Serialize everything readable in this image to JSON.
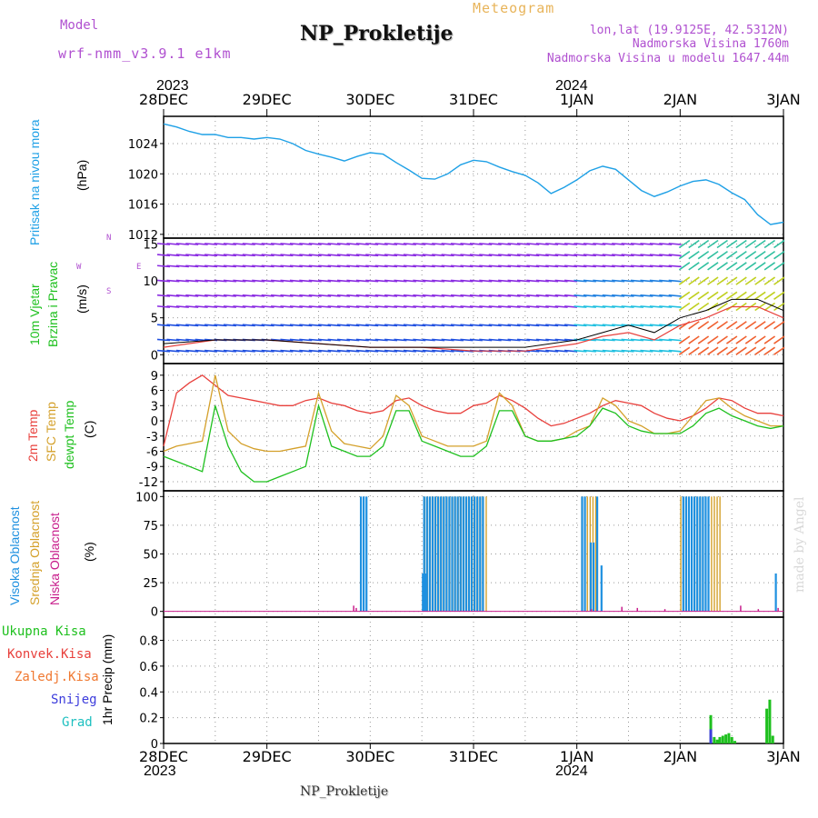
{
  "header": {
    "model_label": "Model",
    "model_value": "wrf-nmm_v3.9.1 e1km",
    "title": "NP_Prokletije",
    "subtitle": "Meteogram",
    "lonlat": "lon,lat (19.9125E, 42.5312N)",
    "elevation": "Nadmorska Visina 1760m",
    "model_elevation": "Nadmorska Visina u modelu 1647.44m"
  },
  "time_axis": {
    "labels": [
      "28DEC",
      "29DEC",
      "30DEC",
      "31DEC",
      "1JAN",
      "2JAN",
      "3JAN"
    ],
    "year_start": "2023",
    "year_mid": "2024",
    "hours": [
      0,
      24,
      48,
      72,
      96,
      120,
      144
    ]
  },
  "footer": {
    "station": "NP_Prokletije",
    "watermark": "made by Angel"
  },
  "colors": {
    "pressure": "#1ea0e6",
    "t2m": "#e8403c",
    "sfc": "#d4a02a",
    "dewpt": "#1ec01e",
    "high_cloud": "#1e90e0",
    "mid_cloud": "#d4a02a",
    "low_cloud": "#c81e8c",
    "rain_total": "#1ec01e",
    "rain_conv": "#e8403c",
    "freezing": "#f07830",
    "snow": "#3c3cdc",
    "graupel": "#1ec0c0",
    "grid": "#888888"
  },
  "chart_data": [
    {
      "type": "line",
      "panel": "pressure",
      "ylabel_1": "Pritisak na nivou mora",
      "ylabel_2": "(hPa)",
      "yticks": [
        1012,
        1016,
        1020,
        1024
      ],
      "ylim": [
        1011.5,
        1027.6
      ],
      "x_hours": [
        0,
        3,
        6,
        9,
        12,
        15,
        18,
        21,
        24,
        27,
        30,
        33,
        36,
        39,
        42,
        45,
        48,
        51,
        54,
        57,
        60,
        63,
        66,
        69,
        72,
        75,
        78,
        81,
        84,
        87,
        90,
        93,
        96,
        99,
        102,
        105,
        108,
        111,
        114,
        117,
        120,
        123,
        126,
        129,
        132,
        135,
        138,
        141,
        144
      ],
      "values": [
        1026.6,
        1026.2,
        1025.6,
        1025.2,
        1025.2,
        1024.8,
        1024.8,
        1024.6,
        1024.8,
        1024.6,
        1024.0,
        1023.1,
        1022.6,
        1022.2,
        1021.7,
        1022.3,
        1022.8,
        1022.6,
        1021.5,
        1020.5,
        1019.4,
        1019.3,
        1020.0,
        1021.2,
        1021.8,
        1021.6,
        1020.9,
        1020.3,
        1019.8,
        1018.8,
        1017.4,
        1018.2,
        1019.2,
        1020.4,
        1021.0,
        1020.6,
        1019.2,
        1017.8,
        1017.0,
        1017.6,
        1018.4,
        1019.0,
        1019.2,
        1018.6,
        1017.5,
        1016.6,
        1014.6,
        1013.3,
        1013.6
      ]
    },
    {
      "type": "line",
      "panel": "wind",
      "ylabel_1": "10m Vjetar",
      "ylabel_2": "Brzina i Pravac",
      "ylabel_3": "(m/s)",
      "compass": "N",
      "compass_w": "W",
      "compass_e": "E",
      "compass_s": "S",
      "yticks": [
        0,
        5,
        10,
        15
      ],
      "ylim": [
        -1.2,
        15.8
      ],
      "x_hours": [
        0,
        12,
        24,
        36,
        48,
        60,
        72,
        84,
        96,
        102,
        108,
        114,
        120,
        126,
        132,
        138,
        144
      ],
      "series": [
        {
          "values": [
            1,
            2,
            2,
            1.5,
            1,
            1,
            0.5,
            0.5,
            1.5,
            2.5,
            3,
            2,
            4,
            5,
            6.5,
            6.5,
            5
          ]
        },
        {
          "values": [
            1.5,
            2,
            2,
            1.5,
            1,
            1,
            1,
            1,
            2,
            3,
            4,
            3,
            5,
            6,
            7.5,
            7.5,
            6
          ]
        }
      ]
    },
    {
      "type": "line",
      "panel": "temperature",
      "ylabel_1": "2m Temp",
      "ylabel_2": "SFC Temp",
      "ylabel_3": "dewpt Temp",
      "ylabel_4": "(C)",
      "yticks": [
        -12,
        -9,
        -6,
        -3,
        0,
        3,
        6,
        9
      ],
      "ylim": [
        -13.8,
        11.3
      ],
      "x_hours": [
        0,
        3,
        6,
        9,
        12,
        15,
        18,
        21,
        24,
        27,
        30,
        33,
        36,
        39,
        42,
        45,
        48,
        51,
        54,
        57,
        60,
        63,
        66,
        69,
        72,
        75,
        78,
        81,
        84,
        87,
        90,
        93,
        96,
        99,
        102,
        105,
        108,
        111,
        114,
        117,
        120,
        123,
        126,
        129,
        132,
        135,
        138,
        141,
        144
      ],
      "series": [
        {
          "name": "2m",
          "values": [
            -5,
            5.5,
            7.5,
            9,
            7,
            5,
            4.5,
            4,
            3.5,
            3,
            3,
            4,
            4.5,
            3.5,
            3,
            2,
            1.5,
            2,
            4,
            4.5,
            3,
            2,
            1.5,
            1.5,
            3,
            3.5,
            5,
            4,
            2.5,
            0.5,
            -1,
            -0.5,
            0.5,
            1.5,
            3,
            4,
            3.5,
            3,
            1.5,
            0.5,
            0,
            1,
            2.5,
            4.5,
            4,
            2.5,
            1.5,
            1.5,
            1
          ]
        },
        {
          "name": "sfc",
          "values": [
            -6,
            -5,
            -4.5,
            -4,
            9,
            -2,
            -4.5,
            -5.5,
            -6,
            -6,
            -5.5,
            -5,
            5.5,
            -2,
            -4.5,
            -5,
            -5.5,
            -3,
            5,
            3,
            -3,
            -4,
            -5,
            -5,
            -5,
            -4,
            5.5,
            3,
            -3,
            -4,
            -4,
            -3.5,
            -2,
            -1,
            4.5,
            3,
            0,
            -1,
            -2.5,
            -2.5,
            -2,
            1,
            4,
            4.5,
            2.5,
            1,
            0,
            -1,
            -1
          ]
        },
        {
          "name": "dewpt",
          "values": [
            -7,
            -8,
            -9,
            -10,
            3,
            -5,
            -10,
            -12,
            -12,
            -11,
            -10,
            -9,
            3,
            -5,
            -6,
            -7,
            -7,
            -5,
            2,
            2,
            -4,
            -5,
            -6,
            -7,
            -7,
            -5,
            2,
            2,
            -3,
            -4,
            -4,
            -3.5,
            -3,
            -1,
            2.5,
            1.5,
            -1,
            -2,
            -2.5,
            -2.5,
            -2.5,
            -1,
            1.5,
            2.5,
            1,
            0,
            -1,
            -1.5,
            -1
          ]
        }
      ]
    },
    {
      "type": "bar",
      "panel": "clouds",
      "ylabel_1": "Visoka Oblacnost",
      "ylabel_2": "Srednja Oblacnost",
      "ylabel_3": "Niska Oblacnost",
      "ylabel_4": "(%)",
      "yticks": [
        0,
        25,
        50,
        75,
        100
      ],
      "ylim": [
        -5,
        105
      ],
      "high": [
        {
          "h": [
            45.6,
            46.9
          ],
          "v": 100
        },
        {
          "h": [
            60.0,
            61.0
          ],
          "v": 33
        },
        {
          "h": [
            60.3,
            74.3
          ],
          "v": 100
        },
        {
          "h": [
            97.0,
            98.0
          ],
          "v": 100
        },
        {
          "h": [
            99.0,
            100.0
          ],
          "v": 60
        },
        {
          "h": [
            100.5,
            101.0
          ],
          "v": 100
        },
        {
          "h": [
            101.5,
            102.0
          ],
          "v": 40
        },
        {
          "h": [
            120.5,
            126.4
          ],
          "v": 100
        },
        {
          "h": [
            142.0,
            142.5
          ],
          "v": 33
        }
      ],
      "mid": [
        {
          "h": [
            60.5,
            75.3
          ],
          "v": 100
        },
        {
          "h": [
            97.0,
            100.7
          ],
          "v": 100
        },
        {
          "h": [
            120.0,
            129.5
          ],
          "v": 100
        }
      ],
      "low": [
        {
          "h": 44.0,
          "v": 5
        },
        {
          "h": 44.6,
          "v": 3
        },
        {
          "h": 99.2,
          "v": 2
        },
        {
          "h": 106.3,
          "v": 4
        },
        {
          "h": 109.9,
          "v": 3
        },
        {
          "h": 116.3,
          "v": 2
        },
        {
          "h": 133.9,
          "v": 5
        },
        {
          "h": 138.0,
          "v": 2
        },
        {
          "h": 142.6,
          "v": 3
        }
      ]
    },
    {
      "type": "bar",
      "panel": "precip",
      "ylabel_1": "1hr Precip (mm)",
      "legend": [
        "Ukupna Kisa",
        "Konvek.Kisa",
        "Zaledj.Kisa",
        "Snijeg",
        "Grad"
      ],
      "yticks": [
        0,
        0.2,
        0.4,
        0.6,
        0.8
      ],
      "ylim": [
        0,
        0.98
      ],
      "bars": [
        {
          "h": 126.8,
          "v": 0.22,
          "color": "rain_total"
        },
        {
          "h": 126.8,
          "v": 0.11,
          "color": "snow"
        },
        {
          "h": 127.6,
          "v": 0.05,
          "color": "rain_total"
        },
        {
          "h": 128.3,
          "v": 0.03,
          "color": "rain_total"
        },
        {
          "h": 128.9,
          "v": 0.05,
          "color": "rain_total"
        },
        {
          "h": 129.6,
          "v": 0.06,
          "color": "rain_total"
        },
        {
          "h": 130.3,
          "v": 0.07,
          "color": "rain_total"
        },
        {
          "h": 131.0,
          "v": 0.08,
          "color": "rain_total"
        },
        {
          "h": 131.7,
          "v": 0.05,
          "color": "rain_total"
        },
        {
          "h": 132.4,
          "v": 0.02,
          "color": "rain_total"
        },
        {
          "h": 139.8,
          "v": 0.27,
          "color": "rain_total"
        },
        {
          "h": 140.5,
          "v": 0.34,
          "color": "rain_total"
        },
        {
          "h": 141.2,
          "v": 0.06,
          "color": "rain_total"
        }
      ]
    }
  ]
}
